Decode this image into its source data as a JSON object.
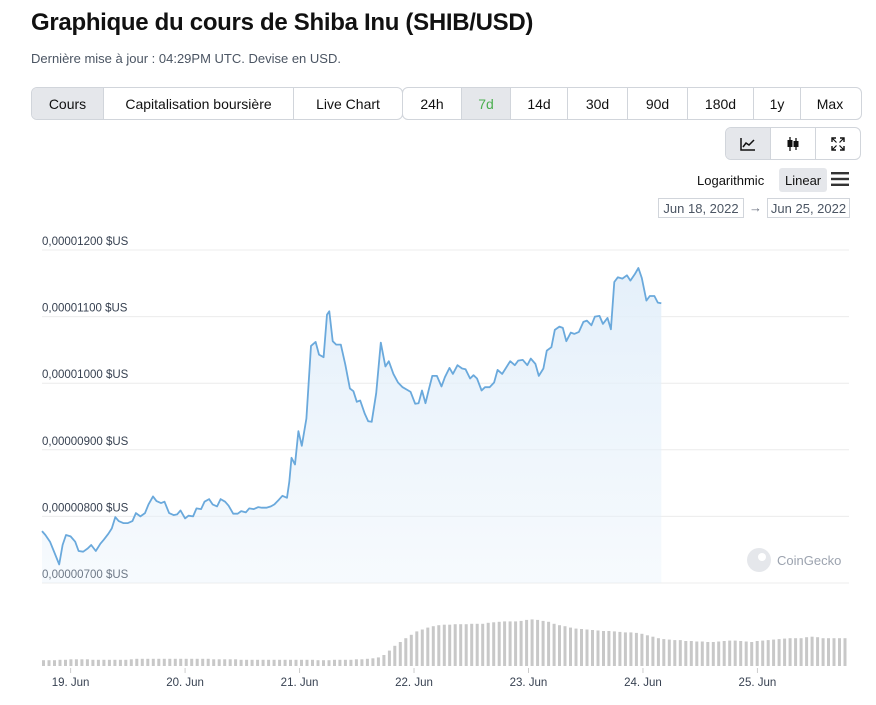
{
  "page": {
    "title": "Graphique du cours de Shiba Inu (SHIB/USD)",
    "subtitle": "Dernière mise à jour : 04:29PM UTC. Devise en USD."
  },
  "tabs": [
    {
      "label": "Cours",
      "active": true
    },
    {
      "label": "Capitalisation boursière",
      "active": false
    },
    {
      "label": "Live Chart",
      "active": false
    }
  ],
  "ranges": [
    {
      "label": "24h",
      "active": false
    },
    {
      "label": "7d",
      "active": true
    },
    {
      "label": "14d",
      "active": false
    },
    {
      "label": "30d",
      "active": false
    },
    {
      "label": "90d",
      "active": false
    },
    {
      "label": "180d",
      "active": false
    },
    {
      "label": "1y",
      "active": false
    },
    {
      "label": "Max",
      "active": false
    }
  ],
  "views": [
    {
      "icon": "line-chart-icon",
      "active": true
    },
    {
      "icon": "candlestick-icon",
      "active": false
    },
    {
      "icon": "fullscreen-icon",
      "active": false
    }
  ],
  "scale": {
    "logarithmic": "Logarithmic",
    "linear": "Linear",
    "selected": "Linear"
  },
  "date_range": {
    "from": "Jun 18, 2022",
    "to": "Jun 25, 2022"
  },
  "watermark": "CoinGecko",
  "colors": {
    "line": "#6aa9dc",
    "area": "#e3effa",
    "volume": "#c8c8c8",
    "accent": "#4caf50",
    "grid": "#ececec"
  },
  "chart_data": {
    "type": "area",
    "title": "",
    "xlabel": "",
    "ylabel": "",
    "ylim": [
      7e-06,
      1.2e-05
    ],
    "y_tick_values": [
      7e-06,
      8e-06,
      9e-06,
      1e-05,
      1.1e-05,
      1.2e-05
    ],
    "y_tick_labels": [
      "0,00000700 $US",
      "0,00000800 $US",
      "0,00000900 $US",
      "0,00001000 $US",
      "0,00001100 $US",
      "0,00001200 $US"
    ],
    "x_tick_labels": [
      "19. Jun",
      "20. Jun",
      "21. Jun",
      "22. Jun",
      "23. Jun",
      "24. Jun",
      "25. Jun"
    ],
    "x_tick_days": [
      1,
      2,
      3,
      4,
      5,
      6,
      7
    ],
    "x_range_days": [
      0.75,
      7.8
    ],
    "grid": true,
    "series": [
      {
        "values": [
          [
            0.75,
            7.78e-06
          ],
          [
            0.78,
            7.72e-06
          ],
          [
            0.82,
            7.62e-06
          ],
          [
            0.86,
            7.45e-06
          ],
          [
            0.9,
            7.28e-06
          ],
          [
            0.93,
            7.57e-06
          ],
          [
            0.96,
            7.72e-06
          ],
          [
            1.0,
            7.7e-06
          ],
          [
            1.04,
            7.62e-06
          ],
          [
            1.07,
            7.48e-06
          ],
          [
            1.11,
            7.47e-06
          ],
          [
            1.15,
            7.52e-06
          ],
          [
            1.18,
            7.57e-06
          ],
          [
            1.22,
            7.48e-06
          ],
          [
            1.26,
            7.59e-06
          ],
          [
            1.29,
            7.65e-06
          ],
          [
            1.33,
            7.74e-06
          ],
          [
            1.36,
            7.82e-06
          ],
          [
            1.39,
            7.99e-06
          ],
          [
            1.42,
            7.93e-06
          ],
          [
            1.46,
            7.9e-06
          ],
          [
            1.5,
            7.9e-06
          ],
          [
            1.54,
            7.93e-06
          ],
          [
            1.57,
            8.05e-06
          ],
          [
            1.61,
            8e-06
          ],
          [
            1.65,
            8.05e-06
          ],
          [
            1.68,
            8.18e-06
          ],
          [
            1.72,
            8.3e-06
          ],
          [
            1.75,
            8.23e-06
          ],
          [
            1.79,
            8.2e-06
          ],
          [
            1.82,
            8.22e-06
          ],
          [
            1.86,
            8.05e-06
          ],
          [
            1.9,
            8.02e-06
          ],
          [
            1.93,
            8.03e-06
          ],
          [
            1.96,
            8.09e-06
          ],
          [
            2.0,
            7.97e-06
          ],
          [
            2.03,
            8.01e-06
          ],
          [
            2.07,
            8e-06
          ],
          [
            2.1,
            8.12e-06
          ],
          [
            2.14,
            8.11e-06
          ],
          [
            2.17,
            8.22e-06
          ],
          [
            2.21,
            8.26e-06
          ],
          [
            2.24,
            8.18e-06
          ],
          [
            2.28,
            8.15e-06
          ],
          [
            2.31,
            8.26e-06
          ],
          [
            2.35,
            8.22e-06
          ],
          [
            2.38,
            8.16e-06
          ],
          [
            2.42,
            8.04e-06
          ],
          [
            2.46,
            8.04e-06
          ],
          [
            2.49,
            8.08e-06
          ],
          [
            2.53,
            8.06e-06
          ],
          [
            2.56,
            8.12e-06
          ],
          [
            2.6,
            8.11e-06
          ],
          [
            2.64,
            8.14e-06
          ],
          [
            2.67,
            8.13e-06
          ],
          [
            2.71,
            8.13e-06
          ],
          [
            2.75,
            8.15e-06
          ],
          [
            2.78,
            8.18e-06
          ],
          [
            2.82,
            8.25e-06
          ],
          [
            2.85,
            8.31e-06
          ],
          [
            2.89,
            8.28e-06
          ],
          [
            2.91,
            8.52e-06
          ],
          [
            2.93,
            8.88e-06
          ],
          [
            2.96,
            8.78e-06
          ],
          [
            2.99,
            9.28e-06
          ],
          [
            3.02,
            9.06e-06
          ],
          [
            3.06,
            9.47e-06
          ],
          [
            3.1,
            1.056e-05
          ],
          [
            3.14,
            1.062e-05
          ],
          [
            3.17,
            1.043e-05
          ],
          [
            3.21,
            1.039e-05
          ],
          [
            3.24,
            1.103e-05
          ],
          [
            3.26,
            1.108e-05
          ],
          [
            3.29,
            1.063e-05
          ],
          [
            3.32,
            1.058e-05
          ],
          [
            3.36,
            1.058e-05
          ],
          [
            3.4,
            1.028e-05
          ],
          [
            3.44,
            9.92e-06
          ],
          [
            3.47,
            9.88e-06
          ],
          [
            3.5,
            9.72e-06
          ],
          [
            3.53,
            9.74e-06
          ],
          [
            3.57,
            9.54e-06
          ],
          [
            3.6,
            9.43e-06
          ],
          [
            3.63,
            9.42e-06
          ],
          [
            3.67,
            9.85e-06
          ],
          [
            3.71,
            1.061e-05
          ],
          [
            3.75,
            1.025e-05
          ],
          [
            3.78,
            1.033e-05
          ],
          [
            3.82,
            1.014e-05
          ],
          [
            3.86,
            1.001e-05
          ],
          [
            3.9,
            9.94e-06
          ],
          [
            3.94,
            9.9e-06
          ],
          [
            3.97,
            9.87e-06
          ],
          [
            4.01,
            9.69e-06
          ],
          [
            4.04,
            9.7e-06
          ],
          [
            4.07,
            9.89e-06
          ],
          [
            4.1,
            9.7e-06
          ],
          [
            4.13,
            9.91e-06
          ],
          [
            4.16,
            1.011e-05
          ],
          [
            4.2,
            1.011e-05
          ],
          [
            4.24,
            9.95e-06
          ],
          [
            4.27,
            1.009e-05
          ],
          [
            4.31,
            1.023e-05
          ],
          [
            4.34,
            1.014e-05
          ],
          [
            4.38,
            1.027e-05
          ],
          [
            4.42,
            1.022e-05
          ],
          [
            4.45,
            1.021e-05
          ],
          [
            4.49,
            1.007e-05
          ],
          [
            4.52,
            1.012e-05
          ],
          [
            4.55,
            1.007e-05
          ],
          [
            4.59,
            9.89e-06
          ],
          [
            4.62,
            9.94e-06
          ],
          [
            4.66,
            9.94e-06
          ],
          [
            4.7,
            1.001e-05
          ],
          [
            4.73,
            1.02e-05
          ],
          [
            4.77,
            1.014e-05
          ],
          [
            4.8,
            1.022e-05
          ],
          [
            4.84,
            1.033e-05
          ],
          [
            4.88,
            1.027e-05
          ],
          [
            4.91,
            1.034e-05
          ],
          [
            4.95,
            1.035e-05
          ],
          [
            4.99,
            1.027e-05
          ],
          [
            5.02,
            1.037e-05
          ],
          [
            5.06,
            1.029e-05
          ],
          [
            5.09,
            1.011e-05
          ],
          [
            5.13,
            1.022e-05
          ],
          [
            5.16,
            1.049e-05
          ],
          [
            5.2,
            1.054e-05
          ],
          [
            5.23,
            1.08e-05
          ],
          [
            5.27,
            1.085e-05
          ],
          [
            5.3,
            1.083e-05
          ],
          [
            5.33,
            1.063e-05
          ],
          [
            5.37,
            1.076e-05
          ],
          [
            5.4,
            1.074e-05
          ],
          [
            5.44,
            1.077e-05
          ],
          [
            5.48,
            1.092e-05
          ],
          [
            5.51,
            1.094e-05
          ],
          [
            5.55,
            1.087e-05
          ],
          [
            5.58,
            1.1e-05
          ],
          [
            5.62,
            1.101e-05
          ],
          [
            5.65,
            1.089e-05
          ],
          [
            5.69,
            1.098e-05
          ],
          [
            5.72,
            1.081e-05
          ],
          [
            5.75,
            1.152e-05
          ],
          [
            5.78,
            1.159e-05
          ],
          [
            5.82,
            1.157e-05
          ],
          [
            5.86,
            1.162e-05
          ],
          [
            5.89,
            1.154e-05
          ],
          [
            5.93,
            1.164e-05
          ],
          [
            5.96,
            1.173e-05
          ],
          [
            5.99,
            1.158e-05
          ],
          [
            6.03,
            1.124e-05
          ],
          [
            6.06,
            1.131e-05
          ],
          [
            6.1,
            1.131e-05
          ],
          [
            6.13,
            1.121e-05
          ],
          [
            6.16,
            1.12e-05
          ]
        ]
      }
    ],
    "volume_relative": [
      0.12,
      0.12,
      0.12,
      0.13,
      0.13,
      0.14,
      0.14,
      0.14,
      0.14,
      0.13,
      0.13,
      0.13,
      0.13,
      0.13,
      0.13,
      0.13,
      0.14,
      0.15,
      0.15,
      0.15,
      0.15,
      0.15,
      0.15,
      0.15,
      0.15,
      0.15,
      0.15,
      0.15,
      0.15,
      0.15,
      0.15,
      0.14,
      0.14,
      0.14,
      0.14,
      0.14,
      0.13,
      0.13,
      0.13,
      0.13,
      0.13,
      0.13,
      0.13,
      0.13,
      0.13,
      0.13,
      0.13,
      0.13,
      0.13,
      0.13,
      0.12,
      0.12,
      0.12,
      0.13,
      0.13,
      0.13,
      0.13,
      0.14,
      0.14,
      0.15,
      0.16,
      0.18,
      0.23,
      0.32,
      0.42,
      0.5,
      0.58,
      0.65,
      0.72,
      0.76,
      0.8,
      0.83,
      0.85,
      0.86,
      0.86,
      0.87,
      0.87,
      0.87,
      0.88,
      0.88,
      0.88,
      0.9,
      0.91,
      0.92,
      0.93,
      0.93,
      0.93,
      0.94,
      0.96,
      0.97,
      0.96,
      0.94,
      0.92,
      0.88,
      0.85,
      0.83,
      0.8,
      0.78,
      0.77,
      0.76,
      0.75,
      0.74,
      0.73,
      0.73,
      0.72,
      0.71,
      0.7,
      0.7,
      0.69,
      0.67,
      0.64,
      0.61,
      0.58,
      0.56,
      0.55,
      0.54,
      0.54,
      0.52,
      0.52,
      0.51,
      0.51,
      0.5,
      0.5,
      0.51,
      0.52,
      0.53,
      0.53,
      0.52,
      0.51,
      0.5,
      0.52,
      0.53,
      0.54,
      0.55,
      0.56,
      0.57,
      0.58,
      0.58,
      0.58,
      0.6,
      0.61,
      0.6,
      0.58,
      0.58,
      0.58,
      0.58,
      0.58
    ]
  }
}
